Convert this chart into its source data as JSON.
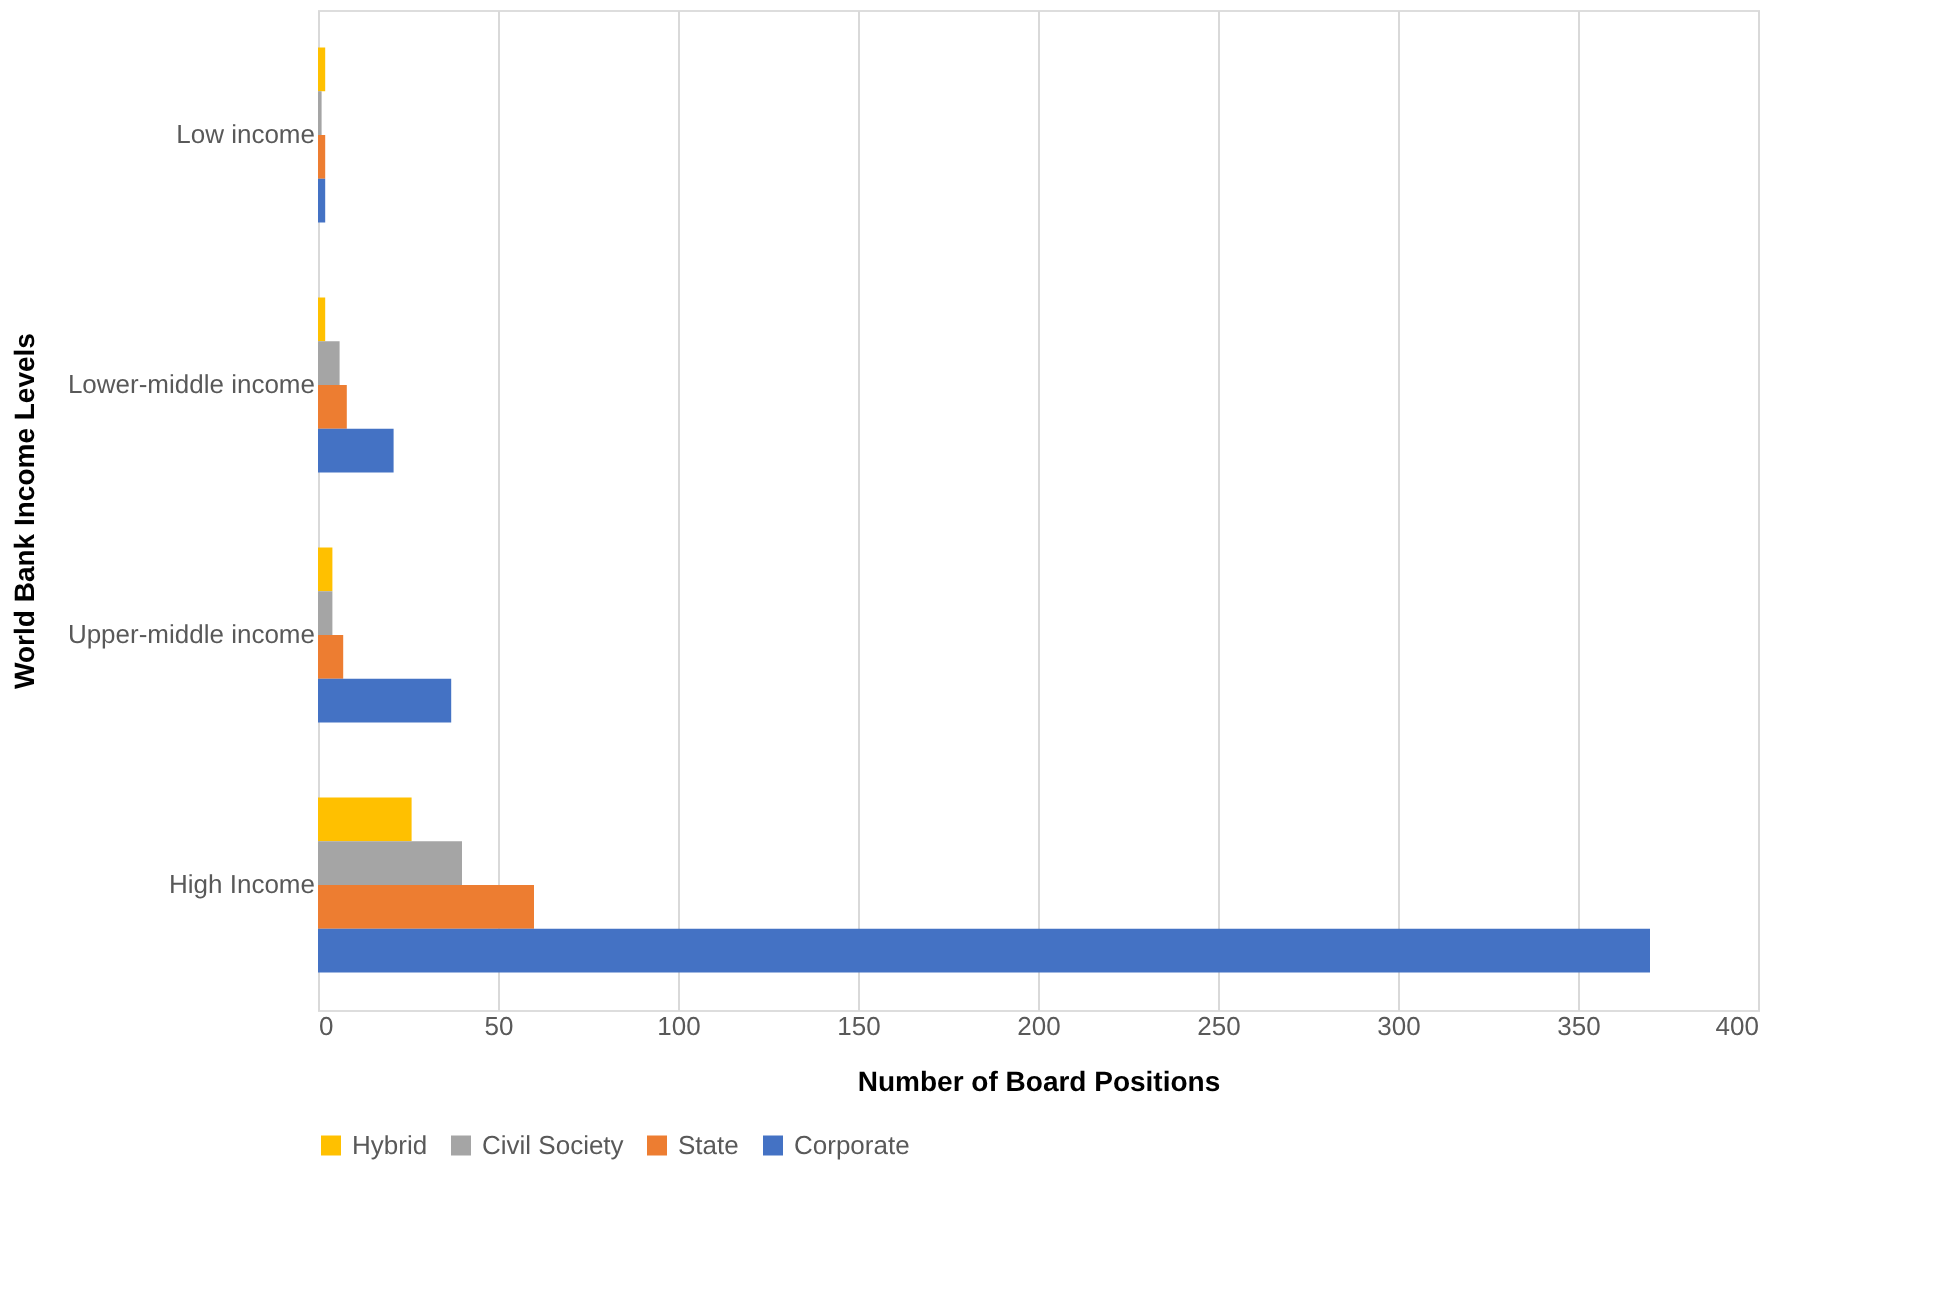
{
  "chart_data": {
    "type": "bar",
    "orientation": "horizontal",
    "xlabel": "Number of Board Positions",
    "ylabel": "World Bank Income Levels",
    "categories": [
      "Low income",
      "Lower-middle income",
      "Upper-middle income",
      "High Income"
    ],
    "series": [
      {
        "name": "Hybrid",
        "color": "#ffc000",
        "values": [
          2,
          2,
          4,
          26
        ]
      },
      {
        "name": "Civil Society",
        "color": "#a5a5a5",
        "values": [
          1,
          6,
          4,
          40
        ]
      },
      {
        "name": "State",
        "color": "#ed7d31",
        "values": [
          2,
          8,
          7,
          60
        ]
      },
      {
        "name": "Corporate",
        "color": "#4472c4",
        "values": [
          2,
          21,
          37,
          370
        ]
      }
    ],
    "xlim": [
      0,
      400
    ],
    "xticks": [
      0,
      50,
      100,
      150,
      200,
      250,
      300,
      350,
      400
    ],
    "grid": "x",
    "legend": "bottom"
  }
}
